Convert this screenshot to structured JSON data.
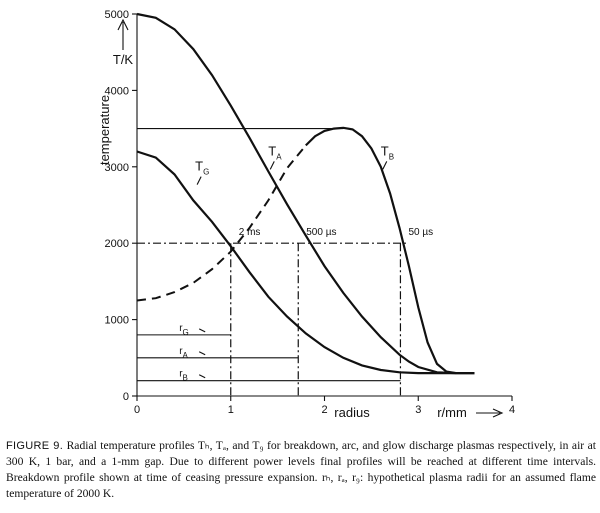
{
  "chart_data": {
    "type": "line",
    "title": "",
    "xlabel": "radius",
    "xunit": "r/mm",
    "ylabel": "temperature",
    "yunit": "T/K",
    "xlim": [
      0,
      4
    ],
    "ylim": [
      0,
      5000
    ],
    "xticks": [
      0,
      1,
      2,
      3,
      4
    ],
    "yticks": [
      0,
      1000,
      2000,
      3000,
      4000,
      5000
    ],
    "series": [
      {
        "name": "T_A",
        "label": "T",
        "sub": "A",
        "style": "solid",
        "x": [
          0,
          0.2,
          0.4,
          0.6,
          0.8,
          1.0,
          1.2,
          1.4,
          1.6,
          1.8,
          2.0,
          2.2,
          2.4,
          2.6,
          2.8,
          2.9,
          3.0,
          3.2,
          3.4,
          3.6
        ],
        "y": [
          5000,
          4950,
          4800,
          4540,
          4200,
          3800,
          3380,
          2940,
          2510,
          2100,
          1700,
          1350,
          1040,
          770,
          540,
          450,
          380,
          310,
          300,
          300
        ]
      },
      {
        "name": "T_G",
        "label": "T",
        "sub": "G",
        "style": "solid",
        "x": [
          0,
          0.2,
          0.4,
          0.6,
          0.8,
          1.0,
          1.2,
          1.4,
          1.6,
          1.8,
          2.0,
          2.2,
          2.4,
          2.6,
          2.8,
          3.0,
          3.2,
          3.4,
          3.6
        ],
        "y": [
          3200,
          3120,
          2900,
          2560,
          2280,
          1960,
          1620,
          1300,
          1040,
          820,
          640,
          500,
          400,
          340,
          310,
          300,
          300,
          300,
          300
        ]
      },
      {
        "name": "T_B",
        "label": "T",
        "sub": "B",
        "style": "dashed-core",
        "x": [
          0,
          0.2,
          0.4,
          0.6,
          0.8,
          1.0,
          1.2,
          1.4,
          1.6,
          1.8,
          1.9,
          2.0,
          2.1,
          2.2,
          2.3,
          2.4,
          2.5,
          2.6,
          2.7,
          2.8,
          2.9,
          3.0,
          3.1,
          3.2,
          3.3,
          3.4
        ],
        "y": [
          1250,
          1280,
          1360,
          1480,
          1660,
          1890,
          2200,
          2560,
          2980,
          3280,
          3400,
          3470,
          3500,
          3510,
          3490,
          3400,
          3240,
          3000,
          2650,
          2200,
          1700,
          1160,
          700,
          420,
          320,
          300
        ],
        "dashed_until_x": 1.85
      }
    ],
    "annotations": {
      "plateau_line": {
        "y": 3500,
        "x_from": 0,
        "x_to": 2.2
      },
      "flame_temperature": {
        "y": 2000,
        "x_from": 0,
        "x_to": 2.9
      },
      "time_labels": [
        {
          "text": "2 ms",
          "x": 1.0,
          "y": 2000
        },
        {
          "text": "500 µs",
          "x": 1.72,
          "y": 2000
        },
        {
          "text": "50 µs",
          "x": 2.81,
          "y": 2000
        }
      ],
      "radii": [
        {
          "name": "r_G",
          "label": "r",
          "sub": "G",
          "value": 1.0,
          "y": 800
        },
        {
          "name": "r_A",
          "label": "r",
          "sub": "A",
          "value": 1.72,
          "y": 500
        },
        {
          "name": "r_B",
          "label": "r",
          "sub": "B",
          "value": 2.81,
          "y": 200
        }
      ]
    }
  },
  "caption": {
    "lead": "FIGURE 9.",
    "text": "Radial temperature profiles Tₕ, Tₐ, and T₉ for breakdown, arc, and glow discharge plasmas respectively, in air at 300 K, 1 bar, and a 1-mm gap. Due to different power levels final profiles will be reached at different time intervals. Breakdown profile shown at time of ceasing pressure expansion. rₕ, rₐ, r₉: hypothetical plasma radii for an assumed flame temperature of 2000 K."
  }
}
